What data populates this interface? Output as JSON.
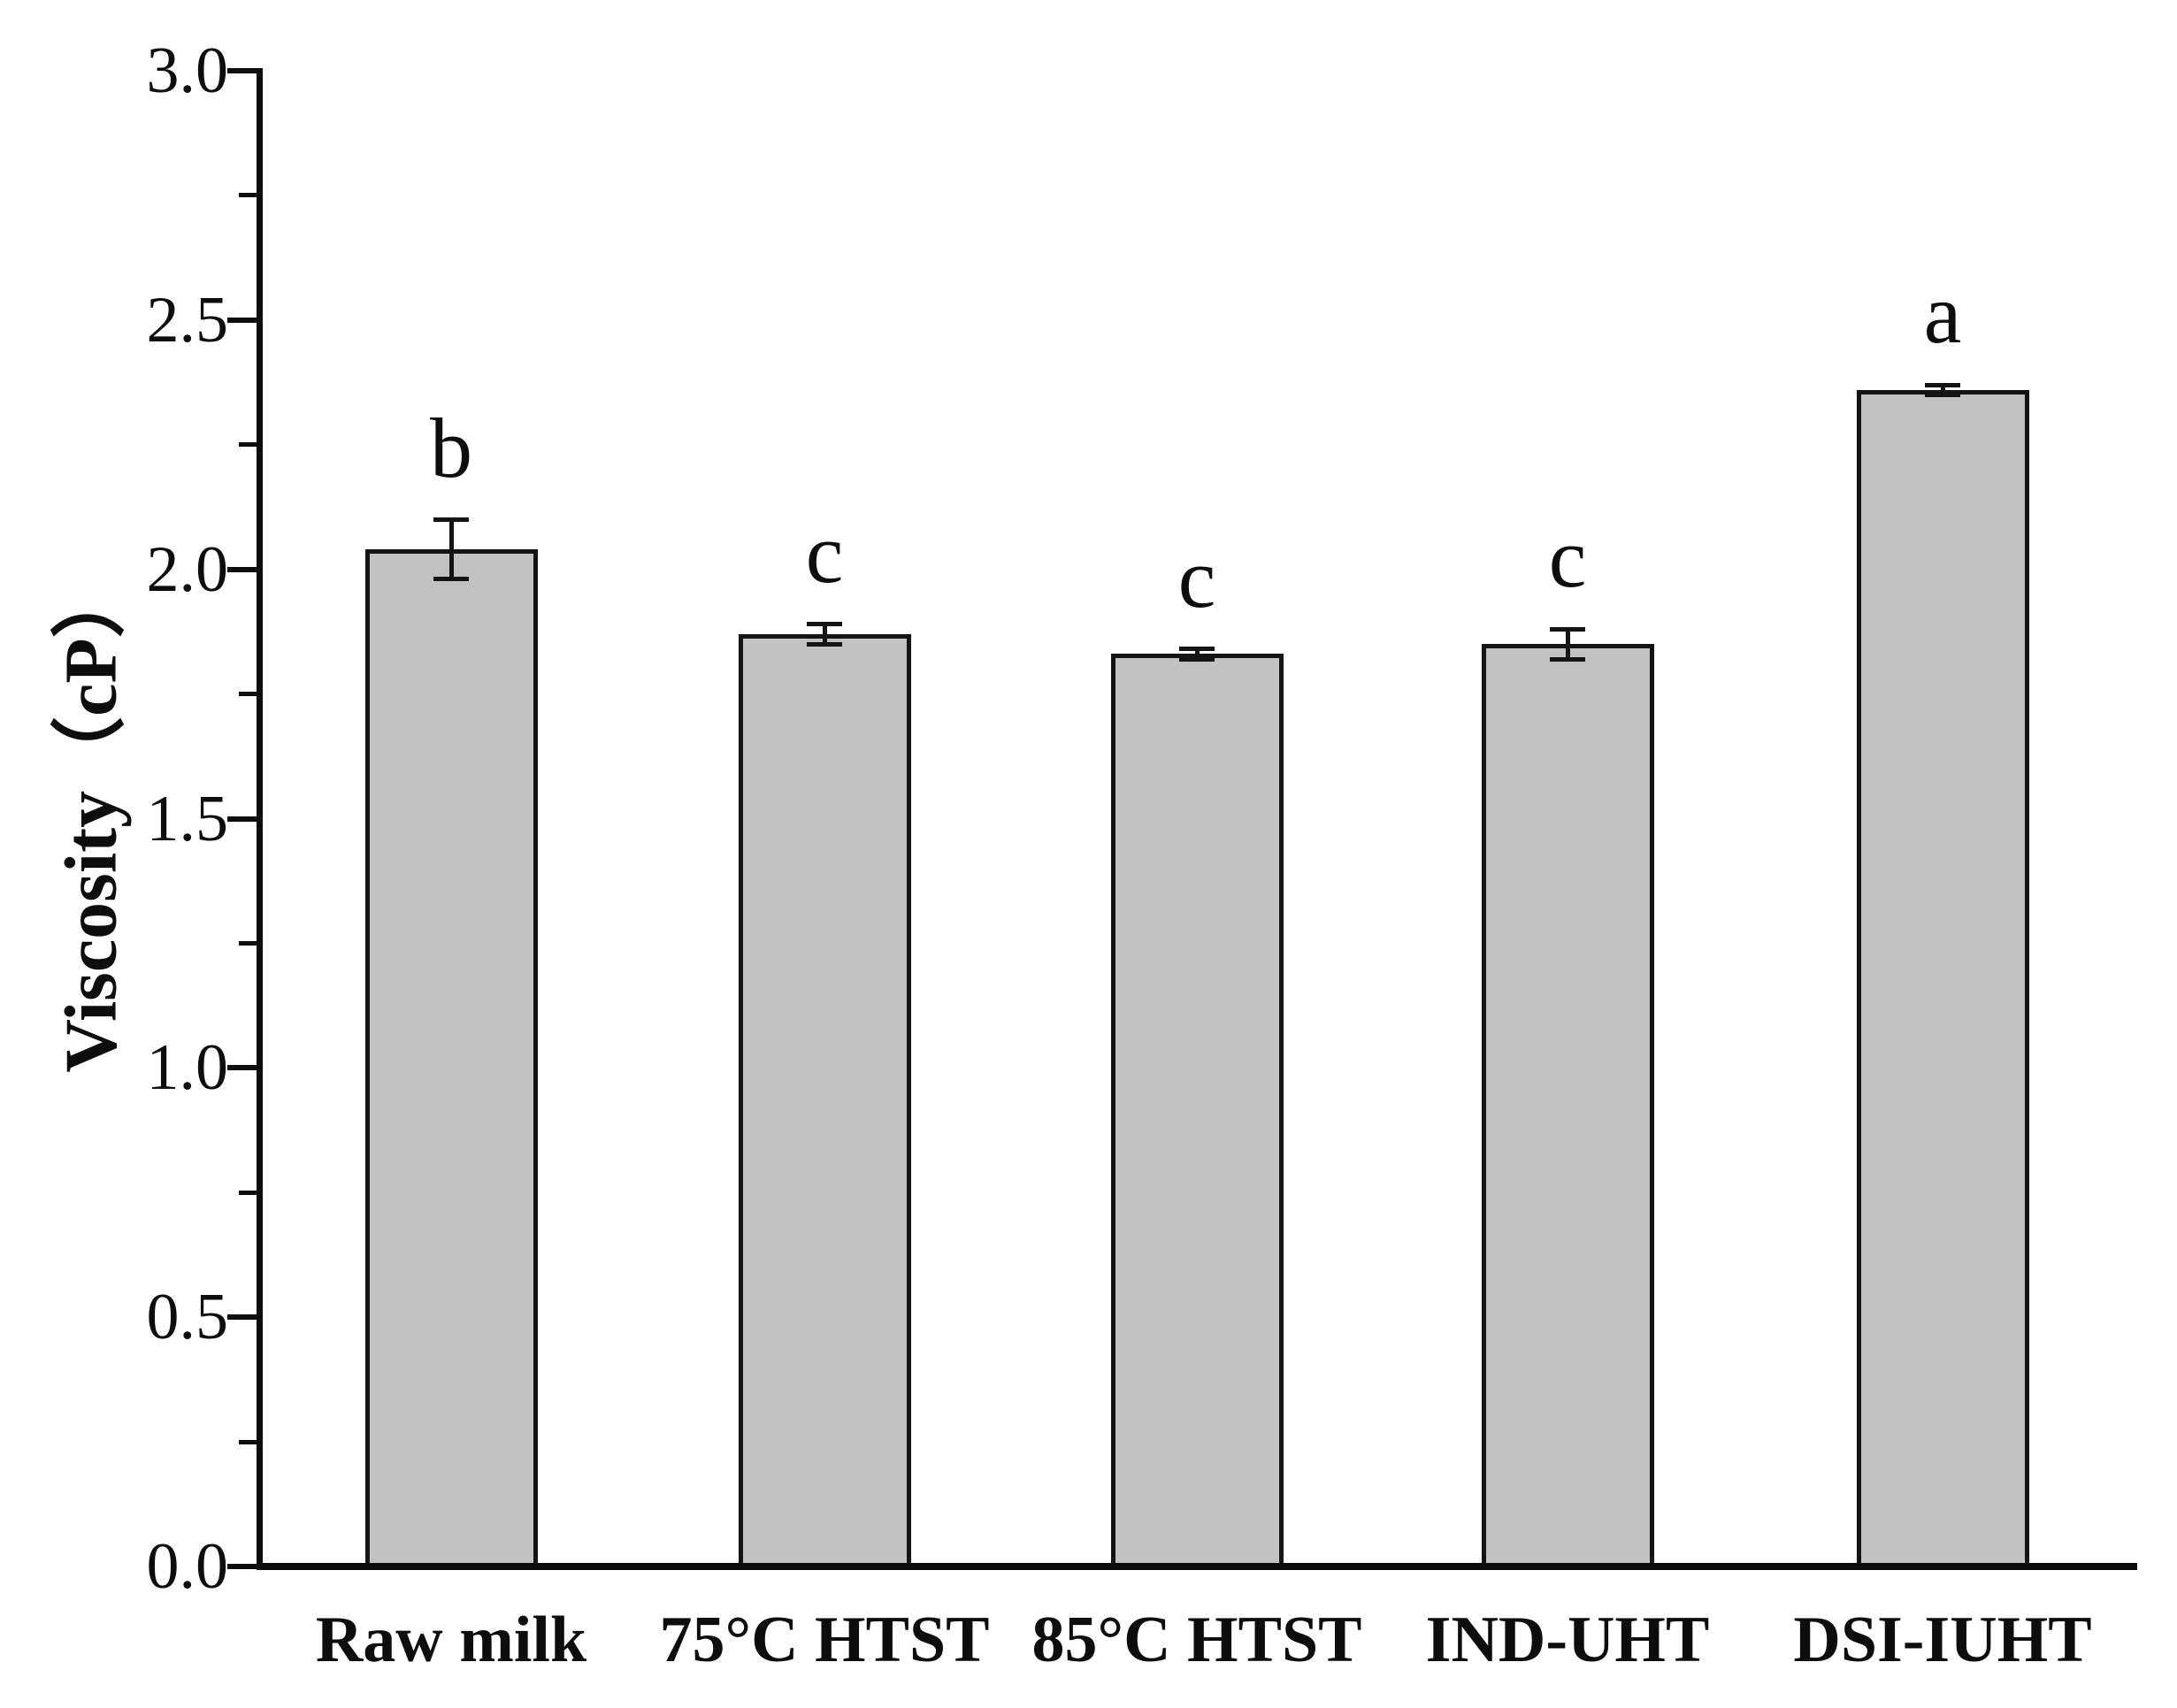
{
  "chart_data": {
    "type": "bar",
    "title": "",
    "xlabel": "",
    "ylabel": "Viscosity（cP）",
    "ylim": [
      0.0,
      3.0
    ],
    "yticks": [
      {
        "value": 0.0,
        "label": "0.0"
      },
      {
        "value": 0.5,
        "label": "0.5"
      },
      {
        "value": 1.0,
        "label": "1.0"
      },
      {
        "value": 1.5,
        "label": "1.5"
      },
      {
        "value": 2.0,
        "label": "2.0"
      },
      {
        "value": 2.5,
        "label": "2.5"
      },
      {
        "value": 3.0,
        "label": "3.0"
      }
    ],
    "minor_yticks": [
      0.25,
      0.75,
      1.25,
      1.75,
      2.25,
      2.75
    ],
    "grid": false,
    "legend": null,
    "categories": [
      "Raw milk",
      "75°C HTST",
      "85°C HTST",
      "IND-UHT",
      "DSI-IUHT"
    ],
    "series": [
      {
        "name": "Viscosity",
        "values": [
          2.04,
          1.87,
          1.83,
          1.85,
          2.36
        ],
        "errors": [
          0.06,
          0.02,
          0.01,
          0.03,
          0.01
        ],
        "significance_letters": [
          "b",
          "c",
          "c",
          "c",
          "a"
        ]
      }
    ],
    "colors": {
      "bar_fill": "#c2c2c4",
      "bar_outline": "#141414",
      "axis": "#0d0d0d",
      "background": "#ffffff"
    }
  }
}
